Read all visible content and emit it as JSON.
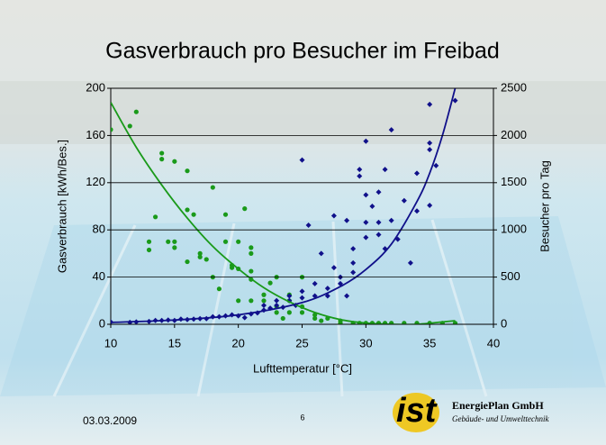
{
  "title": "Gasverbrauch pro Besucher im Freibad",
  "footer": {
    "date": "03.03.2009",
    "page_number": "6",
    "logo": "ist",
    "company": "EnergiePlan GmbH",
    "tagline": "Gebäude- und Umwelttechnik"
  },
  "chart_data": {
    "type": "scatter",
    "x_label": "Lufttemperatur [°C]",
    "y_label": "Gasverbrauch [kWh/Bes.]",
    "y2_label": "Besucher pro Tag",
    "xlim": [
      10,
      40
    ],
    "xticks": [
      10,
      15,
      20,
      25,
      30,
      35,
      40
    ],
    "ylim": [
      0,
      200
    ],
    "yticks": [
      0,
      40,
      80,
      120,
      160,
      200
    ],
    "y2lim": [
      0,
      2500
    ],
    "y2ticks": [
      0,
      500,
      1000,
      1500,
      2000,
      2500
    ],
    "grid": true,
    "series": [
      {
        "color": "#1a9a1a",
        "marker": "circle",
        "axis": "y",
        "x": [
          10,
          11.5,
          12,
          13,
          13,
          13.5,
          14,
          14,
          15,
          14.5,
          15,
          15,
          16,
          16,
          16.5,
          16,
          17,
          17,
          18,
          17.5,
          18,
          18.5,
          19,
          19,
          19.5,
          19.5,
          20,
          20,
          20,
          20.5,
          21,
          21,
          21,
          21,
          21,
          22,
          22,
          22.5,
          23,
          23,
          23,
          23.5,
          24,
          24,
          24,
          25,
          25,
          25,
          26,
          26,
          26.5,
          27,
          28,
          28,
          29,
          29.5,
          30,
          30.5,
          31,
          31.5,
          32,
          33,
          34,
          35,
          36,
          37
        ],
        "values": [
          165,
          168,
          180,
          70,
          63,
          91,
          145,
          140,
          138,
          70,
          70,
          65,
          130,
          97,
          93,
          53,
          60,
          57,
          116,
          55,
          40,
          30,
          93,
          70,
          50,
          48,
          47,
          70,
          20,
          98,
          65,
          60,
          45,
          38,
          20,
          25,
          20,
          35,
          40,
          15,
          10,
          5,
          25,
          20,
          10,
          40,
          15,
          10,
          8,
          5,
          3,
          5,
          3,
          1,
          1,
          1,
          1,
          1,
          1,
          1,
          1,
          1,
          1,
          1,
          1,
          1
        ]
      },
      {
        "color": "#10108a",
        "marker": "diamond",
        "axis": "y2",
        "x": [
          10,
          11.5,
          12,
          13,
          13.5,
          14,
          14.5,
          15,
          15.5,
          16,
          16.5,
          17,
          17.5,
          18,
          18.5,
          19,
          19.5,
          20,
          20.5,
          21,
          21.5,
          22,
          22,
          22.5,
          23,
          23,
          23.5,
          24,
          24,
          24.5,
          25,
          25,
          25,
          25.5,
          26,
          26,
          26.5,
          27,
          27,
          27.5,
          27.5,
          28,
          28,
          28.5,
          28.5,
          29,
          29,
          29,
          29.5,
          29.5,
          30,
          30,
          30,
          30,
          30.5,
          31,
          31,
          31,
          31.5,
          31.5,
          32,
          32,
          32.5,
          33,
          33.5,
          34,
          34,
          35,
          35,
          35,
          35.5,
          35,
          37
        ],
        "values": [
          25,
          20,
          25,
          30,
          40,
          40,
          45,
          40,
          55,
          50,
          55,
          60,
          60,
          80,
          80,
          90,
          100,
          90,
          70,
          110,
          120,
          150,
          200,
          170,
          200,
          250,
          180,
          300,
          250,
          200,
          1740,
          280,
          350,
          1050,
          430,
          300,
          750,
          380,
          300,
          1150,
          600,
          500,
          430,
          1100,
          300,
          550,
          650,
          800,
          1570,
          1640,
          1940,
          1370,
          1080,
          920,
          1250,
          1400,
          1080,
          950,
          1640,
          800,
          2060,
          1100,
          900,
          1310,
          650,
          1200,
          1600,
          1920,
          1850,
          1260,
          1680,
          2330,
          2370
        ]
      },
      {
        "color": "#1a9a1a",
        "type": "line",
        "axis": "y",
        "x": [
          10,
          12,
          14,
          16,
          18,
          20,
          22,
          24,
          26,
          28,
          30,
          32,
          34,
          36,
          37
        ],
        "values": [
          188,
          150,
          118,
          90,
          66,
          47,
          31,
          19,
          10,
          4,
          1,
          0,
          0,
          2,
          3
        ]
      },
      {
        "color": "#10108a",
        "type": "line",
        "axis": "y2",
        "x": [
          10,
          15,
          20,
          25,
          28,
          30,
          32,
          34,
          35,
          36,
          37
        ],
        "values": [
          20,
          45,
          100,
          230,
          400,
          580,
          850,
          1300,
          1600,
          2000,
          2500
        ]
      }
    ]
  }
}
